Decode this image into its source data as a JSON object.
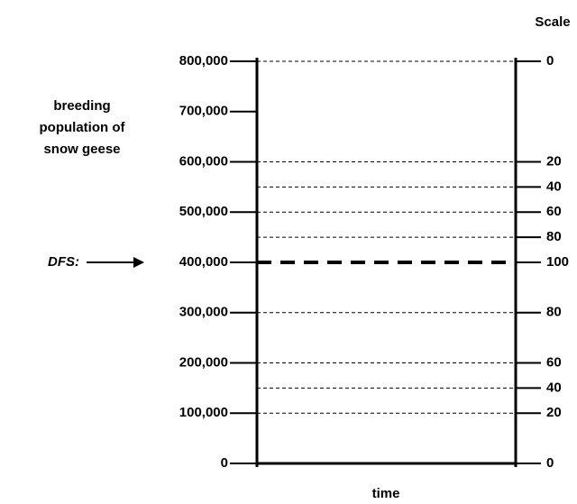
{
  "chart_data": {
    "type": "scale",
    "ylabel": [
      "breeding",
      "population of",
      "snow geese"
    ],
    "y2label": "Scale",
    "xlabel": "time",
    "ylim": [
      0,
      800000
    ],
    "yticks": [
      {
        "value": 0,
        "label": "0"
      },
      {
        "value": 100000,
        "label": "100,000"
      },
      {
        "value": 200000,
        "label": "200,000"
      },
      {
        "value": 300000,
        "label": "300,000"
      },
      {
        "value": 400000,
        "label": "400,000"
      },
      {
        "value": 500000,
        "label": "500,000"
      },
      {
        "value": 600000,
        "label": "600,000"
      },
      {
        "value": 700000,
        "label": "700,000"
      },
      {
        "value": 800000,
        "label": "800,000"
      }
    ],
    "scale_ticks": [
      {
        "population": 800000,
        "scale": 0
      },
      {
        "population": 600000,
        "scale": 20
      },
      {
        "population": 550000,
        "scale": 40
      },
      {
        "population": 500000,
        "scale": 60
      },
      {
        "population": 450000,
        "scale": 80
      },
      {
        "population": 400000,
        "scale": 100
      },
      {
        "population": 300000,
        "scale": 80
      },
      {
        "population": 200000,
        "scale": 60
      },
      {
        "population": 150000,
        "scale": 40
      },
      {
        "population": 100000,
        "scale": 20
      },
      {
        "population": 0,
        "scale": 0
      }
    ],
    "dfs": {
      "label": "DFS:",
      "value": 400000
    }
  }
}
